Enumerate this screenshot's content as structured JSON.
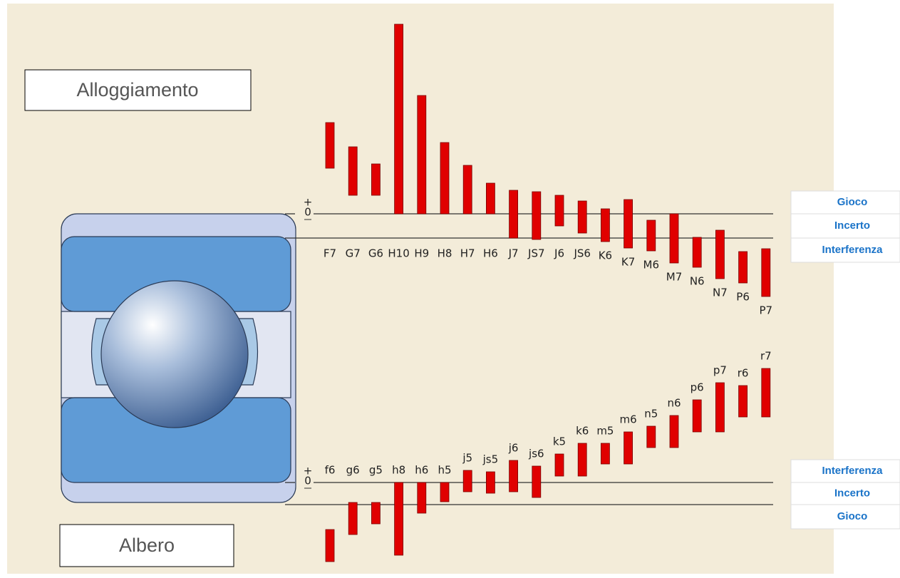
{
  "housing_label": "Alloggiamento",
  "shaft_label": "Albero",
  "housing": {
    "plus_label": "+",
    "zero_label": "0",
    "zones": [
      "Gioco",
      "Incerto",
      "Interferenza"
    ],
    "tolerances": [
      {
        "label": "F7",
        "upper": 128,
        "lower": 64
      },
      {
        "label": "G7",
        "upper": 94,
        "lower": 26
      },
      {
        "label": "G6",
        "upper": 70,
        "lower": 26
      },
      {
        "label": "H10",
        "upper": 266,
        "lower": 0
      },
      {
        "label": "H9",
        "upper": 166,
        "lower": 0
      },
      {
        "label": "H8",
        "upper": 100,
        "lower": 0
      },
      {
        "label": "H7",
        "upper": 68,
        "lower": 0
      },
      {
        "label": "H6",
        "upper": 43,
        "lower": 0
      },
      {
        "label": "J7",
        "upper": 33,
        "lower": -34
      },
      {
        "label": "JS7",
        "upper": 31,
        "lower": -36
      },
      {
        "label": "J6",
        "upper": 26,
        "lower": -17
      },
      {
        "label": "JS6",
        "upper": 18,
        "lower": -27
      },
      {
        "label": "K6",
        "upper": 7,
        "lower": -39
      },
      {
        "label": "K7",
        "upper": 20,
        "lower": -48
      },
      {
        "label": "M6",
        "upper": -9,
        "lower": -52
      },
      {
        "label": "M7",
        "upper": 0,
        "lower": -69
      },
      {
        "label": "N6",
        "upper": -33,
        "lower": -75
      },
      {
        "label": "N7",
        "upper": -23,
        "lower": -91
      },
      {
        "label": "P6",
        "upper": -53,
        "lower": -97
      },
      {
        "label": "P7",
        "upper": -49,
        "lower": -116
      }
    ]
  },
  "shaft": {
    "plus_label": "+",
    "zero_label": "0",
    "zones": [
      "Interferenza",
      "Incerto",
      "Gioco"
    ],
    "tolerances": [
      {
        "label": "f6",
        "upper": -66,
        "lower": -111
      },
      {
        "label": "g6",
        "upper": -28,
        "lower": -73
      },
      {
        "label": "g5",
        "upper": -28,
        "lower": -58
      },
      {
        "label": "h8",
        "upper": 0,
        "lower": -102
      },
      {
        "label": "h6",
        "upper": 0,
        "lower": -43
      },
      {
        "label": "h5",
        "upper": 0,
        "lower": -27
      },
      {
        "label": "j5",
        "upper": 17,
        "lower": -13
      },
      {
        "label": "js5",
        "upper": 15,
        "lower": -15
      },
      {
        "label": "j6",
        "upper": 31,
        "lower": -13
      },
      {
        "label": "js6",
        "upper": 23,
        "lower": -21
      },
      {
        "label": "k5",
        "upper": 40,
        "lower": 9
      },
      {
        "label": "k6",
        "upper": 55,
        "lower": 9
      },
      {
        "label": "m5",
        "upper": 55,
        "lower": 26
      },
      {
        "label": "m6",
        "upper": 71,
        "lower": 26
      },
      {
        "label": "n5",
        "upper": 79,
        "lower": 49
      },
      {
        "label": "n6",
        "upper": 94,
        "lower": 49
      },
      {
        "label": "p6",
        "upper": 116,
        "lower": 71
      },
      {
        "label": "p7",
        "upper": 140,
        "lower": 71
      },
      {
        "label": "r6",
        "upper": 136,
        "lower": 92
      },
      {
        "label": "r7",
        "upper": 160,
        "lower": 92
      }
    ]
  }
}
